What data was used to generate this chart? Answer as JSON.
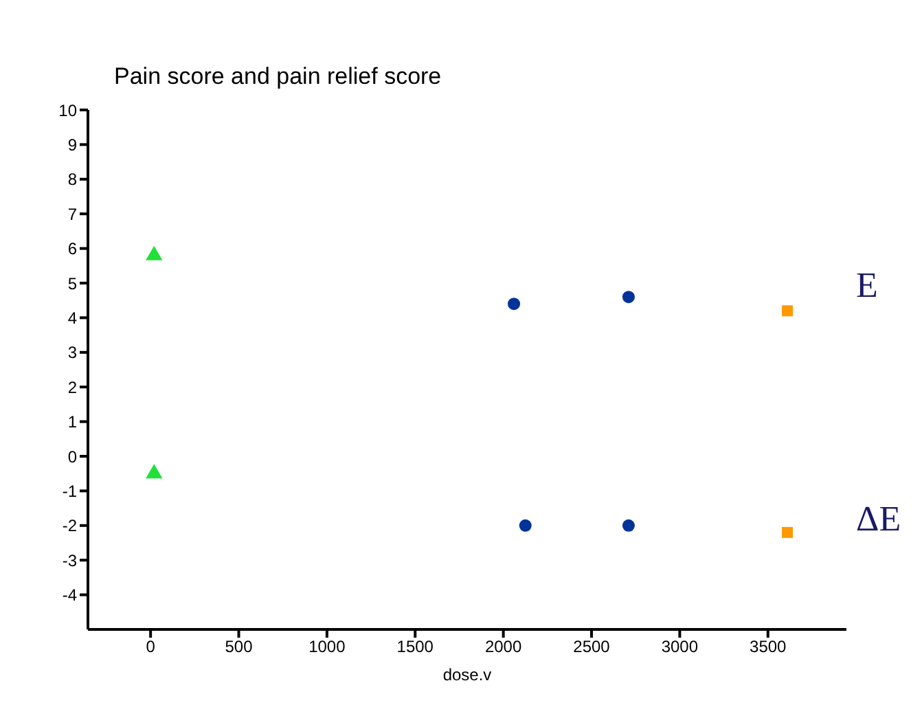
{
  "chart_data": {
    "type": "scatter",
    "title": "Pain score and pain relief score",
    "xlabel": "dose.v",
    "series": [
      {
        "color": "#22e03a",
        "marker": "triangle",
        "x": [
          20,
          20
        ],
        "values": [
          5.8,
          -0.5
        ]
      },
      {
        "color": "#003399",
        "marker": "circle",
        "x": [
          2060,
          2710,
          2125,
          2710
        ],
        "values": [
          4.4,
          4.6,
          -2.0,
          -2.0
        ]
      },
      {
        "color": "#ff9900",
        "marker": "square",
        "x": [
          3610,
          3610
        ],
        "values": [
          4.2,
          -2.2
        ]
      }
    ],
    "xlim": [
      -355,
      3945
    ],
    "xticks": [
      0,
      500,
      1000,
      1500,
      2000,
      2500,
      3000,
      3500
    ],
    "ylim": [
      -5,
      10
    ],
    "yticks": [
      -4,
      -3,
      -2,
      -1,
      0,
      1,
      2,
      3,
      4,
      5,
      6,
      7,
      8,
      9,
      10
    ],
    "annotations": [
      "E",
      "ΔE"
    ],
    "grid": false,
    "legend": false
  }
}
